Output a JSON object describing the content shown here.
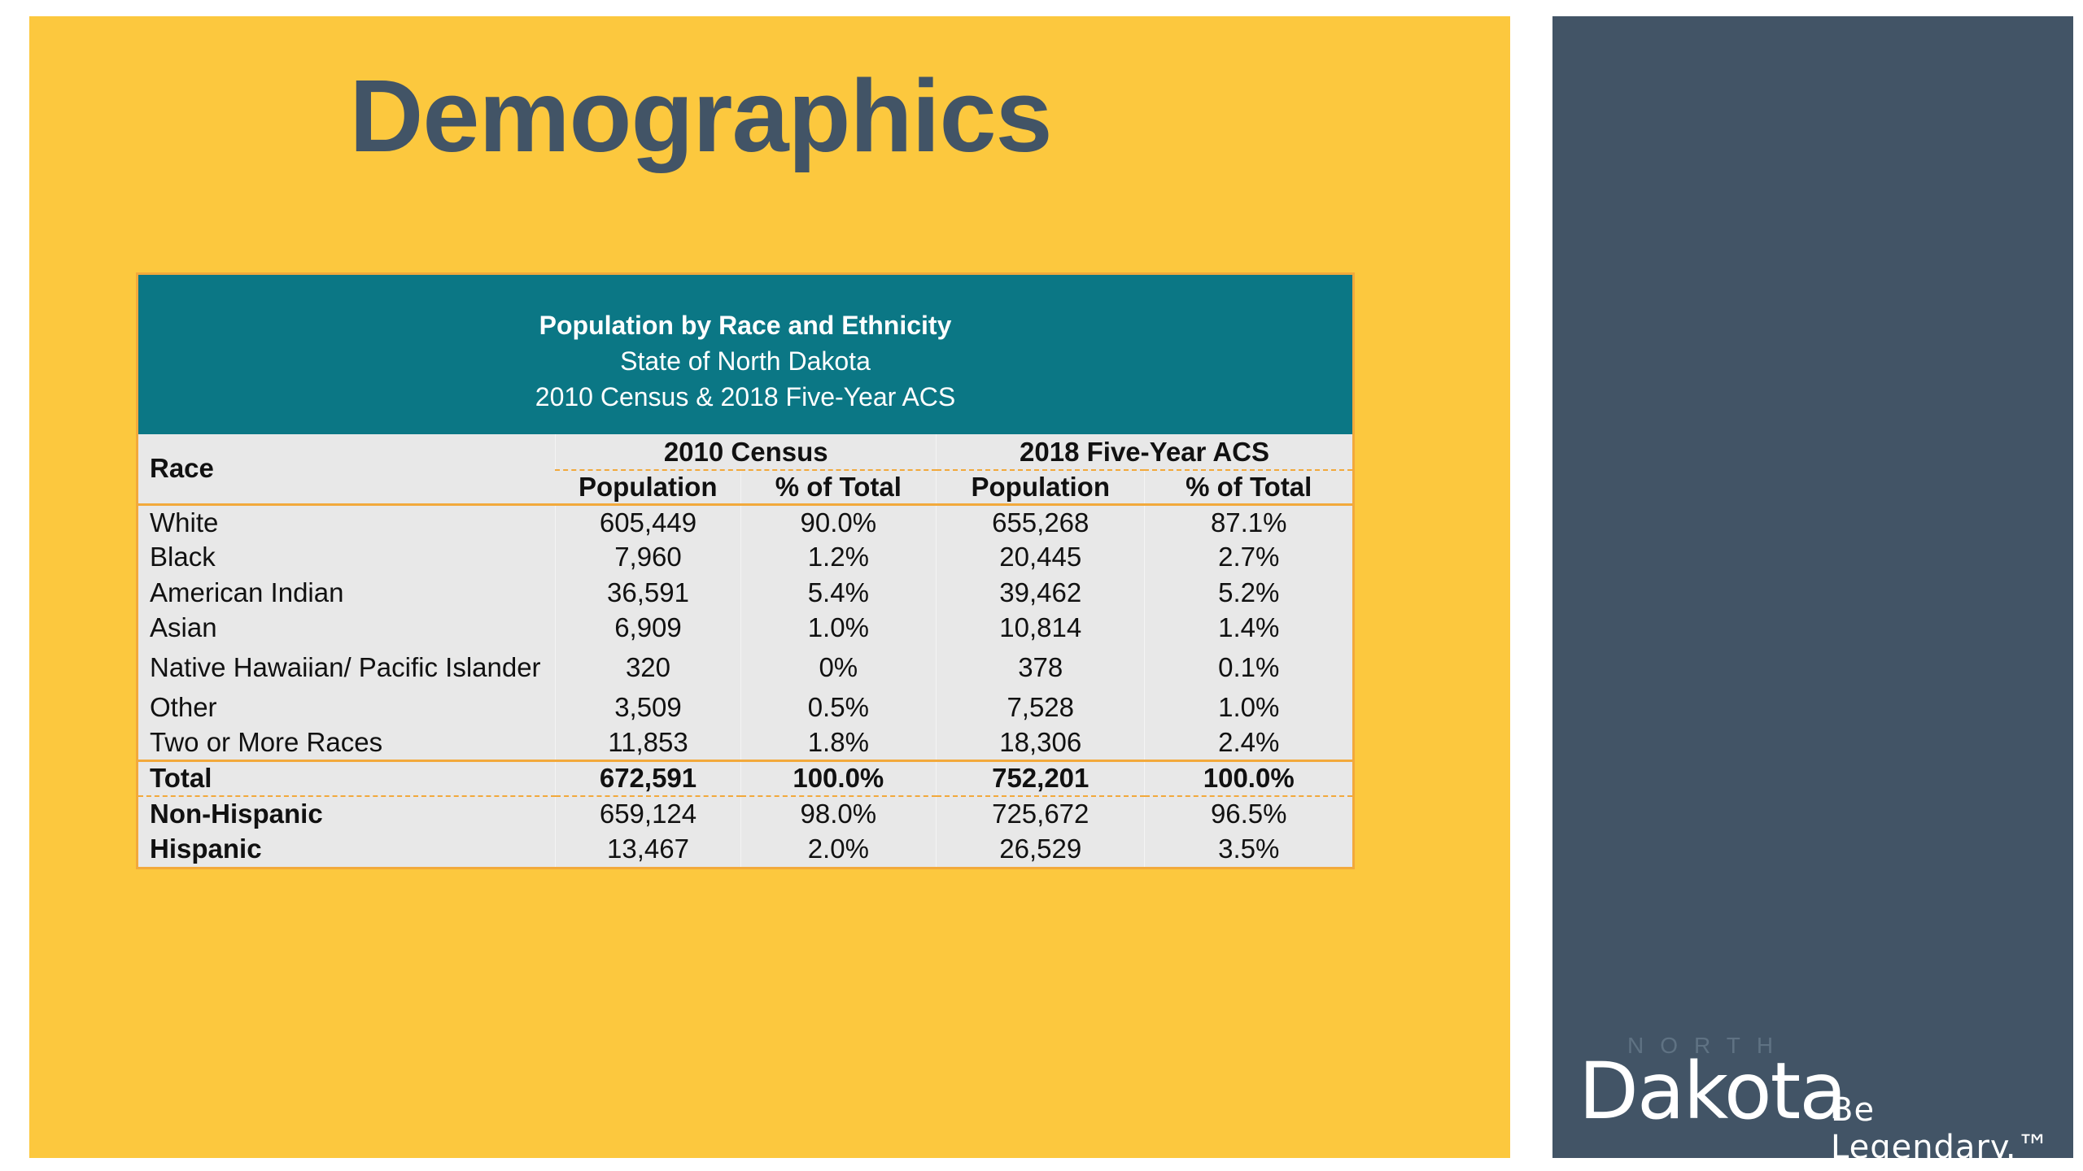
{
  "slide": {
    "title": "Demographics"
  },
  "table": {
    "title": "Population by Race and Ethnicity",
    "subtitle1": "State of North Dakota",
    "subtitle2": "2010 Census & 2018 Five-Year ACS",
    "race_header": "Race",
    "group1": "2010 Census",
    "group2": "2018 Five-Year ACS",
    "col_pop": "Population",
    "col_pct": "% of Total",
    "rows": [
      {
        "race": "White",
        "pop2010": "605,449",
        "pct2010": "90.0%",
        "pop2018": "655,268",
        "pct2018": "87.1%"
      },
      {
        "race": "Black",
        "pop2010": "7,960",
        "pct2010": "1.2%",
        "pop2018": "20,445",
        "pct2018": "2.7%"
      },
      {
        "race": "American Indian",
        "pop2010": "36,591",
        "pct2010": "5.4%",
        "pop2018": "39,462",
        "pct2018": "5.2%"
      },
      {
        "race": "Asian",
        "pop2010": "6,909",
        "pct2010": "1.0%",
        "pop2018": "10,814",
        "pct2018": "1.4%"
      },
      {
        "race": "Native Hawaiian/ Pacific Islander",
        "pop2010": "320",
        "pct2010": "0%",
        "pop2018": "378",
        "pct2018": "0.1%"
      },
      {
        "race": "Other",
        "pop2010": "3,509",
        "pct2010": "0.5%",
        "pop2018": "7,528",
        "pct2018": "1.0%"
      },
      {
        "race": "Two or More Races",
        "pop2010": "11,853",
        "pct2010": "1.8%",
        "pop2018": "18,306",
        "pct2018": "2.4%"
      },
      {
        "race": "Total",
        "pop2010": "672,591",
        "pct2010": "100.0%",
        "pop2018": "752,201",
        "pct2018": "100.0%"
      },
      {
        "race": "Non-Hispanic",
        "pop2010": "659,124",
        "pct2010": "98.0%",
        "pop2018": "725,672",
        "pct2018": "96.5%"
      },
      {
        "race": "Hispanic",
        "pop2010": "13,467",
        "pct2010": "2.0%",
        "pop2018": "26,529",
        "pct2018": "3.5%"
      }
    ]
  },
  "logo": {
    "north": "NORTH",
    "dakota": "Dakota",
    "tagline": "Be Legendary.™"
  },
  "colors": {
    "slide_bg": "#fcc83e",
    "side_panel": "#425466",
    "table_header": "#0b7785",
    "accent_line": "#f2a93b"
  }
}
